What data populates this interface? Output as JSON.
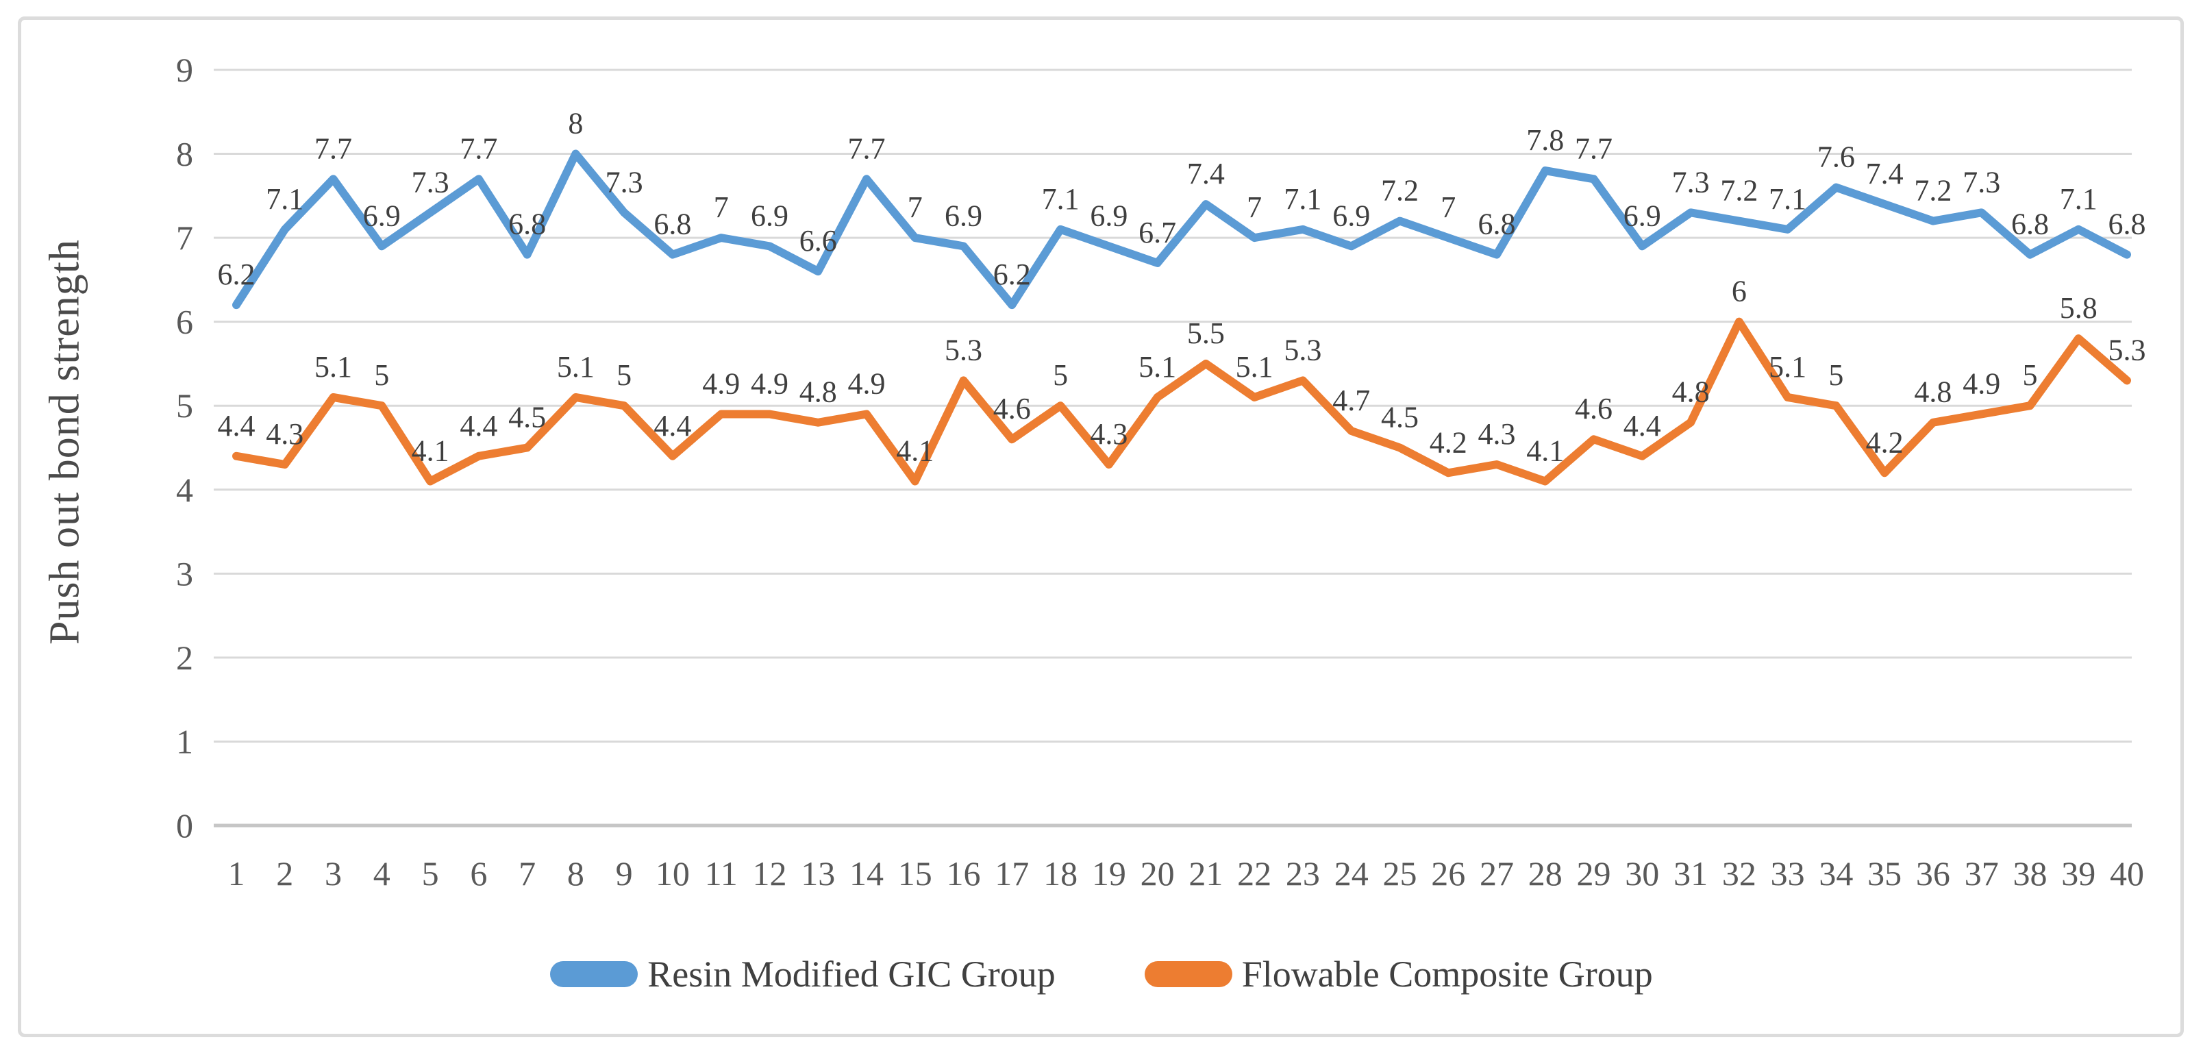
{
  "chart_data": {
    "type": "line",
    "title": "",
    "xlabel": "",
    "ylabel": "Push out bond strength",
    "ylim": [
      0,
      9
    ],
    "yticks": [
      0,
      1,
      2,
      3,
      4,
      5,
      6,
      7,
      8,
      9
    ],
    "grid": true,
    "legend_position": "bottom",
    "data_labels": true,
    "categories": [
      "1",
      "2",
      "3",
      "4",
      "5",
      "6",
      "7",
      "8",
      "9",
      "10",
      "11",
      "12",
      "13",
      "14",
      "15",
      "16",
      "17",
      "18",
      "19",
      "20",
      "21",
      "22",
      "23",
      "24",
      "25",
      "26",
      "27",
      "28",
      "29",
      "30",
      "31",
      "32",
      "33",
      "34",
      "35",
      "36",
      "37",
      "38",
      "39",
      "40"
    ],
    "series": [
      {
        "name": "Resin Modified GIC Group",
        "color": "#5B9BD5",
        "values": [
          6.2,
          7.1,
          7.7,
          6.9,
          7.3,
          7.7,
          6.8,
          8,
          7.3,
          6.8,
          7,
          6.9,
          6.6,
          7.7,
          7,
          6.9,
          6.2,
          7.1,
          6.9,
          6.7,
          7.4,
          7,
          7.1,
          6.9,
          7.2,
          7,
          6.8,
          7.8,
          7.7,
          6.9,
          7.3,
          7.2,
          7.1,
          7.6,
          7.4,
          7.2,
          7.3,
          6.8,
          7.1,
          6.8
        ]
      },
      {
        "name": "Flowable Composite Group",
        "color": "#ED7D31",
        "values": [
          4.4,
          4.3,
          5.1,
          5,
          4.1,
          4.4,
          4.5,
          5.1,
          5,
          4.4,
          4.9,
          4.9,
          4.8,
          4.9,
          4.1,
          5.3,
          4.6,
          5,
          4.3,
          5.1,
          5.5,
          5.1,
          5.3,
          4.7,
          4.5,
          4.2,
          4.3,
          4.1,
          4.6,
          4.4,
          4.8,
          6,
          5.1,
          5,
          4.2,
          4.8,
          4.9,
          5,
          5.8,
          5.3
        ]
      }
    ]
  },
  "colors": {
    "gridline": "#D9D9D9",
    "axis_line": "#C6C6C6",
    "tick_text": "#595959",
    "label_text": "#3F3F3F",
    "frame_border": "#DCDCDC"
  }
}
